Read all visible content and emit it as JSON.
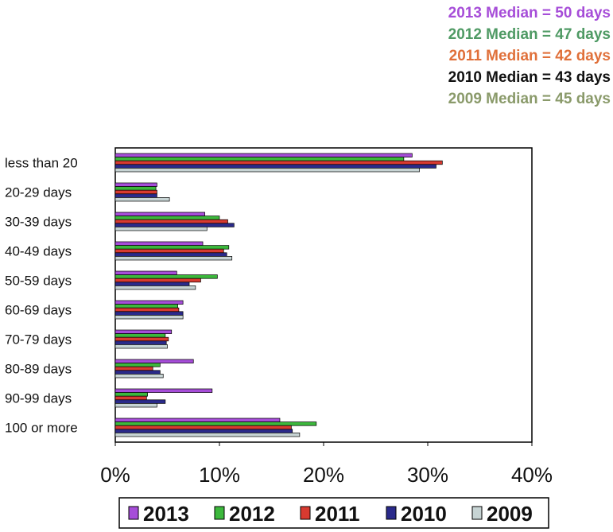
{
  "medians": [
    {
      "text": "2013 Median = 50 days",
      "color": "#a64dd8"
    },
    {
      "text": "2012 Median = 47 days",
      "color": "#4f9a64"
    },
    {
      "text": "2011 Median = 42 days",
      "color": "#e0703a"
    },
    {
      "text": "2010 Median = 43 days",
      "color": "#111111"
    },
    {
      "text": "2009 Median = 45 days",
      "color": "#8a9a6a"
    }
  ],
  "chart_data": {
    "type": "bar",
    "orientation": "horizontal",
    "categories": [
      "less than 20",
      "20-29 days",
      "30-39 days",
      "40-49 days",
      "50-59 days",
      "60-69 days",
      "70-79 days",
      "80-89 days",
      "90-99 days",
      "100 or more"
    ],
    "series": [
      {
        "name": "2013",
        "color": "#a64dd8",
        "values": [
          28.5,
          4.0,
          8.6,
          8.4,
          5.9,
          6.5,
          5.4,
          7.5,
          9.3,
          15.8
        ]
      },
      {
        "name": "2012",
        "color": "#3cb83c",
        "values": [
          27.7,
          3.9,
          10.0,
          10.9,
          9.8,
          6.0,
          4.8,
          4.3,
          3.1,
          19.3
        ]
      },
      {
        "name": "2011",
        "color": "#d83a30",
        "values": [
          31.4,
          4.0,
          10.8,
          10.4,
          8.2,
          6.1,
          5.1,
          3.6,
          3.0,
          16.9
        ]
      },
      {
        "name": "2010",
        "color": "#2a2a8a",
        "values": [
          30.8,
          4.0,
          11.4,
          10.7,
          7.1,
          6.5,
          4.9,
          4.3,
          4.8,
          17.0
        ]
      },
      {
        "name": "2009",
        "color": "#c7d4d4",
        "values": [
          29.2,
          5.2,
          8.8,
          11.2,
          7.7,
          6.5,
          5.0,
          4.6,
          4.0,
          17.7
        ]
      }
    ],
    "x_ticks": [
      "0%",
      "10%",
      "20%",
      "30%",
      "40%"
    ],
    "xlim": [
      0,
      40
    ],
    "legend_position": "bottom",
    "grid": false
  }
}
